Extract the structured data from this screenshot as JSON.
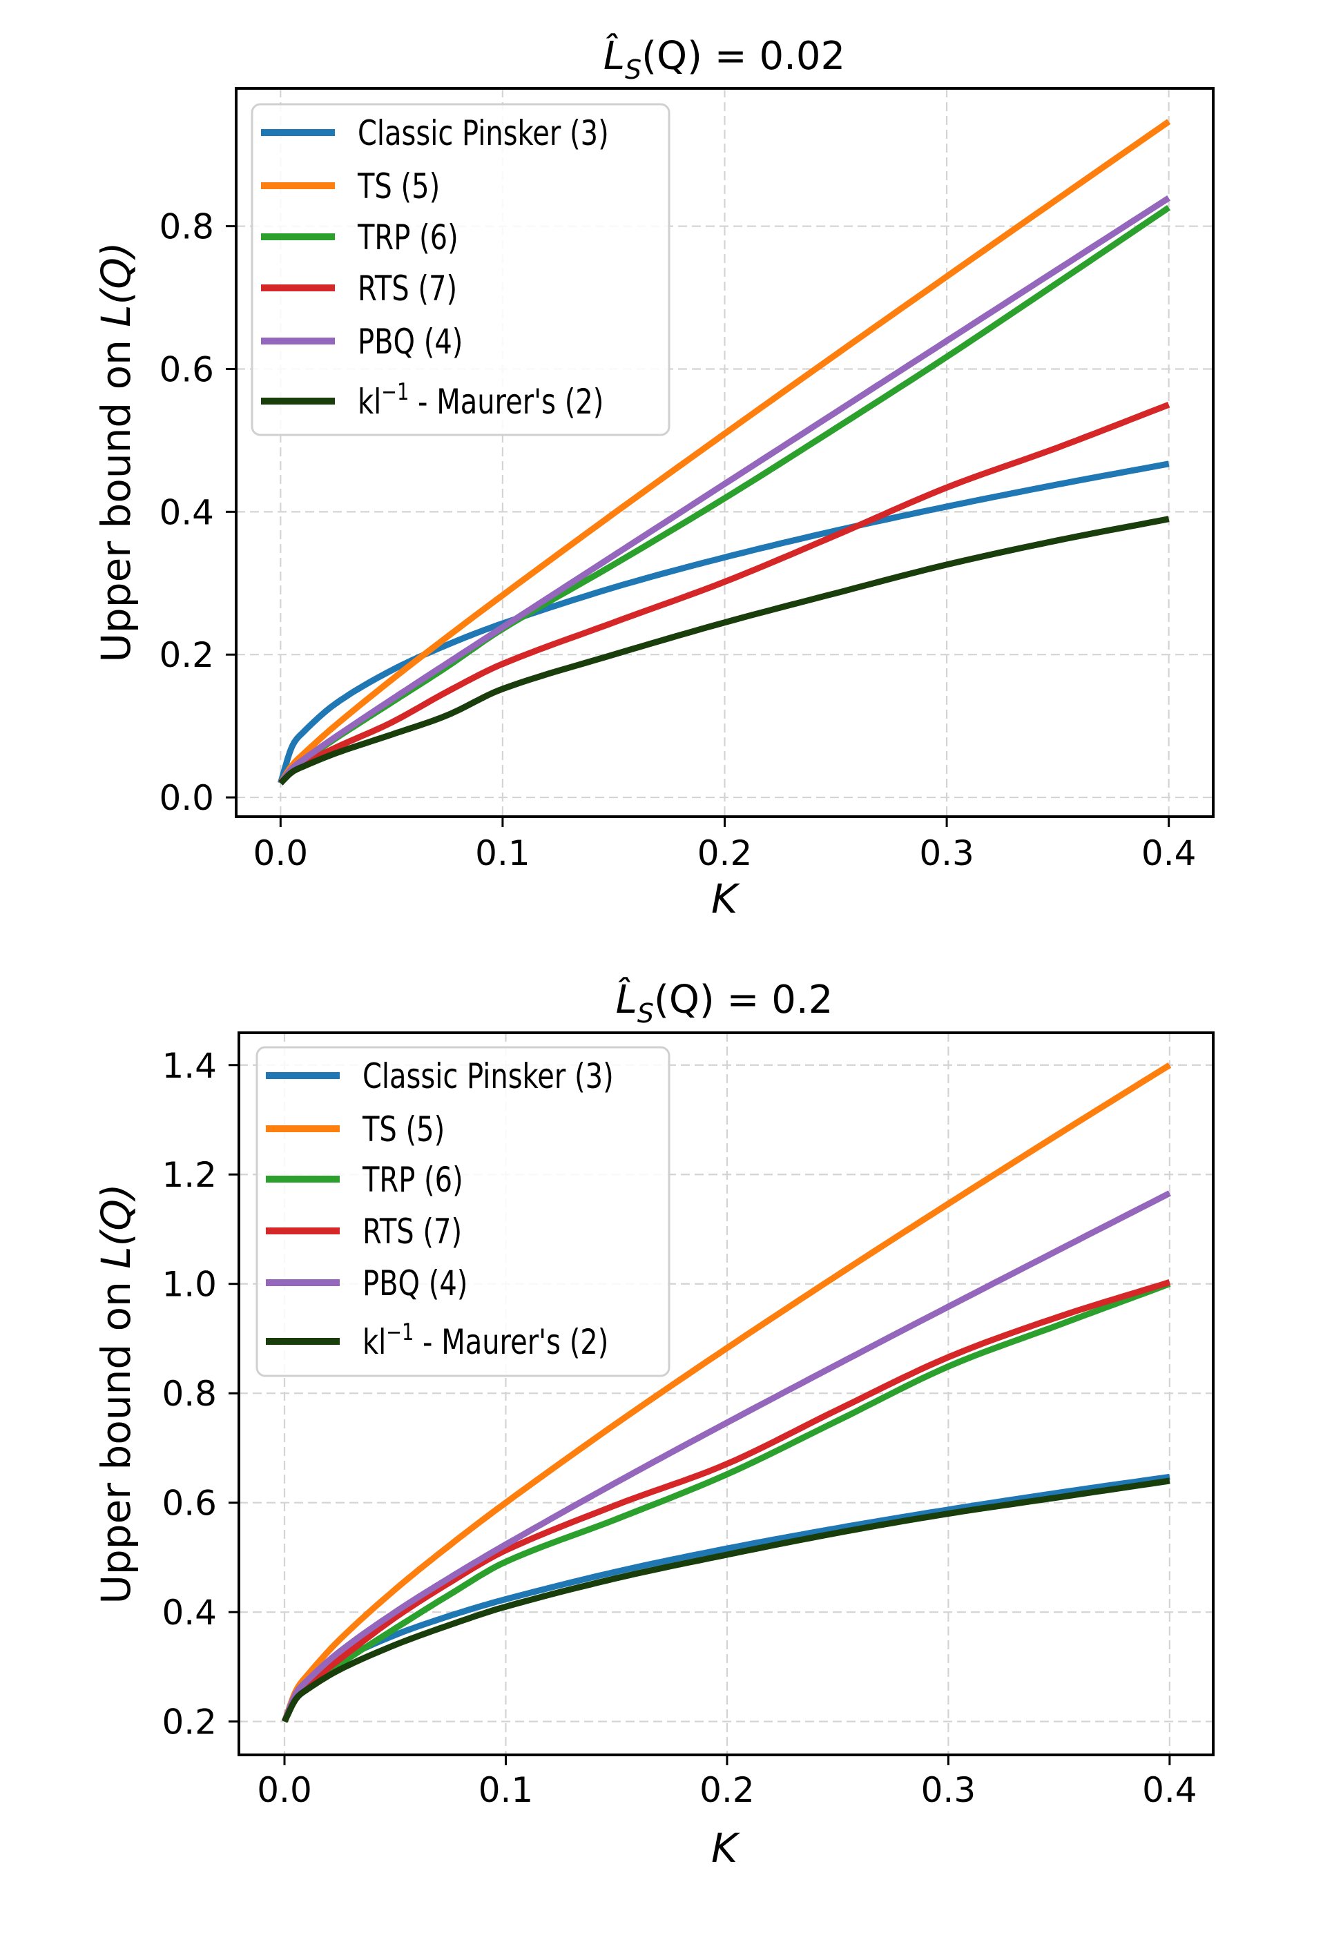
{
  "figure": {
    "x_tick_labels": [
      "0.0",
      "0.1",
      "0.2",
      "0.3",
      "0.4"
    ]
  },
  "chart_data": [
    {
      "type": "line",
      "title": {
        "prefix": "L̂",
        "subscript": "S",
        "middle": "(Q) = ",
        "value": "0.02",
        "full": "̂L_S(Q) = 0.02"
      },
      "xlabel": "K",
      "ylabel": {
        "text": "Upper bound on ",
        "math": "L(Q)"
      },
      "xlim": [
        -0.02,
        0.42
      ],
      "ylim": [
        -0.027,
        0.993
      ],
      "x_ticks": [
        0.0,
        0.1,
        0.2,
        0.3,
        0.4
      ],
      "x_tick_labels": [
        "0.0",
        "0.1",
        "0.2",
        "0.3",
        "0.4"
      ],
      "y_ticks": [
        0.0,
        0.2,
        0.4,
        0.6,
        0.8
      ],
      "y_tick_labels": [
        "0.0",
        "0.2",
        "0.4",
        "0.6",
        "0.8"
      ],
      "grid": true,
      "legend_position": "upper-left",
      "x": [
        0,
        0.005,
        0.01,
        0.025,
        0.05,
        0.075,
        0.1,
        0.15,
        0.2,
        0.25,
        0.3,
        0.35,
        0.4
      ],
      "series": [
        {
          "name": "Classic Pinsker (3)",
          "color": "#1f77b4",
          "values": [
            0.02,
            0.07,
            0.0907,
            0.1318,
            0.178,
            0.2136,
            0.2436,
            0.2939,
            0.3362,
            0.3736,
            0.4073,
            0.4383,
            0.4672
          ]
        },
        {
          "name": "TS (5)",
          "color": "#ff7f0e",
          "values": [
            0.02,
            0.0441,
            0.06,
            0.1016,
            0.1647,
            0.2248,
            0.2832,
            0.3975,
            0.5094,
            0.62,
            0.7295,
            0.8383,
            0.9465
          ]
        },
        {
          "name": "TRP (6)",
          "color": "#2ca02c",
          "values": [
            0.02,
            0.039,
            0.051,
            0.083,
            0.133,
            0.183,
            0.236,
            0.326,
            0.419,
            0.517,
            0.617,
            0.721,
            0.826
          ]
        },
        {
          "name": "RTS (7)",
          "color": "#d62728",
          "values": [
            0.02,
            0.038,
            0.047,
            0.07,
            0.105,
            0.148,
            0.187,
            0.245,
            0.302,
            0.367,
            0.434,
            0.49,
            0.55
          ]
        },
        {
          "name": "PBQ (4)",
          "color": "#9467bd",
          "values": [
            0.02,
            0.04,
            0.0524,
            0.0853,
            0.1371,
            0.1879,
            0.2383,
            0.3388,
            0.4391,
            0.5393,
            0.6394,
            0.7395,
            0.8395
          ]
        },
        {
          "name": "kl⁻¹ - Maurer's (2)",
          "label_base": "kl",
          "label_sup": "−1",
          "label_rest": " - Maurer's (2)",
          "color": "#1a3d0c",
          "values": [
            0.02,
            0.035,
            0.043,
            0.062,
            0.088,
            0.115,
            0.152,
            0.2,
            0.245,
            0.286,
            0.326,
            0.36,
            0.39
          ]
        }
      ]
    },
    {
      "type": "line",
      "title": {
        "prefix": "L̂",
        "subscript": "S",
        "middle": "(Q) = ",
        "value": "0.2",
        "full": "̂L_S(Q) = 0.2"
      },
      "xlabel": "K",
      "ylabel": {
        "text": "Upper bound on ",
        "math": "L(Q)"
      },
      "xlim": [
        -0.0206,
        0.4197
      ],
      "ylim": [
        0.139,
        1.459
      ],
      "x_ticks": [
        0.0,
        0.1,
        0.2,
        0.3,
        0.4
      ],
      "x_tick_labels": [
        "0.0",
        "0.1",
        "0.2",
        "0.3",
        "0.4"
      ],
      "y_ticks": [
        0.2,
        0.4,
        0.6,
        0.8,
        1.0,
        1.2,
        1.4
      ],
      "y_tick_labels": [
        "0.2",
        "0.4",
        "0.6",
        "0.8",
        "1.0",
        "1.2",
        "1.4"
      ],
      "grid": true,
      "legend_position": "upper-left",
      "x": [
        0,
        0.005,
        0.01,
        0.025,
        0.05,
        0.075,
        0.1,
        0.15,
        0.2,
        0.25,
        0.3,
        0.35,
        0.4
      ],
      "series": [
        {
          "name": "Classic Pinsker (3)",
          "color": "#1f77b4",
          "values": [
            0.2,
            0.25,
            0.2707,
            0.3118,
            0.3581,
            0.3936,
            0.4236,
            0.4739,
            0.5162,
            0.5536,
            0.5873,
            0.6183,
            0.6472
          ]
        },
        {
          "name": "TS (5)",
          "color": "#ff7f0e",
          "values": [
            0.2,
            0.2547,
            0.2832,
            0.35,
            0.4414,
            0.5232,
            0.6,
            0.7449,
            0.8828,
            1.0162,
            1.1464,
            1.2742,
            1.4
          ]
        },
        {
          "name": "TRP (6)",
          "color": "#2ca02c",
          "values": [
            0.2,
            0.245,
            0.262,
            0.305,
            0.37,
            0.433,
            0.492,
            0.57,
            0.652,
            0.75,
            0.849,
            0.925,
            1.0
          ]
        },
        {
          "name": "RTS (7)",
          "color": "#d62728",
          "values": [
            0.2,
            0.247,
            0.266,
            0.314,
            0.39,
            0.455,
            0.513,
            0.596,
            0.671,
            0.77,
            0.866,
            0.94,
            1.003
          ]
        },
        {
          "name": "PBQ (4)",
          "color": "#9467bd",
          "values": [
            0.2,
            0.25,
            0.274,
            0.3281,
            0.4,
            0.4637,
            0.5236,
            0.6372,
            0.7464,
            0.8531,
            0.9583,
            1.0623,
            1.1657
          ]
        },
        {
          "name": "kl⁻¹ - Maurer's (2)",
          "label_base": "kl",
          "label_sup": "−1",
          "label_rest": " - Maurer's (2)",
          "color": "#1a3d0c",
          "values": [
            0.2,
            0.24,
            0.258,
            0.295,
            0.34,
            0.377,
            0.41,
            0.462,
            0.505,
            0.545,
            0.58,
            0.61,
            0.64
          ]
        }
      ]
    }
  ]
}
